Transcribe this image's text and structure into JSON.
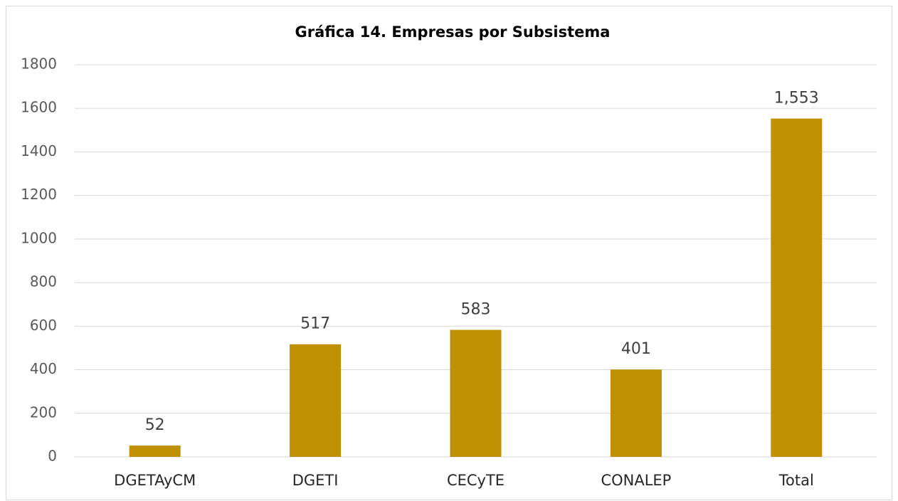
{
  "chart_data": {
    "type": "bar",
    "title": "Gráfica 14. Empresas por Subsistema",
    "categories": [
      "DGETAyCM",
      "DGETI",
      "CECyTE",
      "CONALEP",
      "Total"
    ],
    "values": [
      52,
      517,
      583,
      401,
      1553
    ],
    "value_labels": [
      "52",
      "517",
      "583",
      "401",
      "1,553"
    ],
    "color": "#bf9000",
    "ylim": [
      0,
      1800
    ],
    "yticks": [
      0,
      200,
      400,
      600,
      800,
      1000,
      1200,
      1400,
      1600,
      1800
    ],
    "grid": true
  }
}
